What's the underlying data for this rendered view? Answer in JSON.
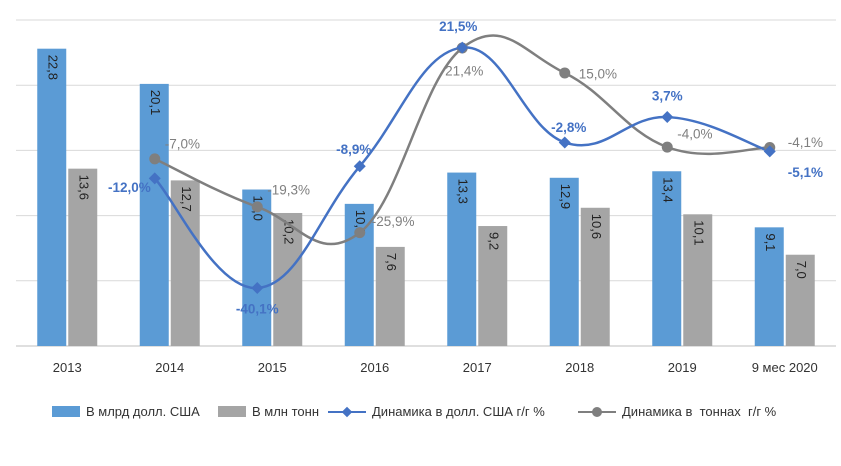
{
  "chart_data": {
    "type": "bar",
    "categories": [
      "2013",
      "2014",
      "2015",
      "2016",
      "2017",
      "2018",
      "2019",
      "9 мес 2020"
    ],
    "series": [
      {
        "name": "В млрд долл. США",
        "kind": "bar",
        "color": "#5b9bd5",
        "values": [
          22.8,
          20.1,
          12.0,
          10.9,
          13.3,
          12.9,
          13.4,
          9.1
        ],
        "labels": [
          "22,8",
          "20,1",
          "12,0",
          "10,9",
          "13,3",
          "12,9",
          "13,4",
          "9,1"
        ]
      },
      {
        "name": "В млн тонн",
        "kind": "bar",
        "color": "#a5a5a5",
        "values": [
          13.6,
          12.7,
          10.2,
          7.6,
          9.2,
          10.6,
          10.1,
          7.0
        ],
        "labels": [
          "13,6",
          "12,7",
          "10,2",
          "7,6",
          "9,2",
          "10,6",
          "10,1",
          "7,0"
        ]
      },
      {
        "name": "Динамика в долл. США г/г %",
        "kind": "line",
        "marker": "diamond",
        "color": "#4472c4",
        "values": [
          null,
          -12.0,
          -40.1,
          -8.9,
          21.5,
          -2.8,
          3.7,
          -5.1
        ],
        "labels": [
          "",
          "-12,0%",
          "-40,1%",
          "-8,9%",
          "21,5%",
          "-2,8%",
          "3,7%",
          "-5,1%"
        ]
      },
      {
        "name": "Динамика в  тоннах  г/г %",
        "kind": "line",
        "marker": "circle",
        "color": "#7f7f7f",
        "values": [
          null,
          -7.0,
          -19.3,
          -25.9,
          21.4,
          15.0,
          -4.0,
          -4.1
        ],
        "labels": [
          "",
          "-7,0%",
          "-19,3%",
          "-25,9%",
          "21,4%",
          "15,0%",
          "-4,0%",
          "-4,1%"
        ]
      }
    ],
    "bar_axis": {
      "min": 0,
      "max": 25,
      "gridlines": [
        5,
        10,
        15,
        20,
        25
      ]
    },
    "line_axis": {
      "min": -47,
      "max": 26
    },
    "legend_position": "bottom",
    "title": ""
  },
  "colors": {
    "bar_usd": "#5b9bd5",
    "bar_tons": "#a5a5a5",
    "line_usd": "#4472c4",
    "line_tons": "#7f7f7f",
    "grid": "#d9d9d9"
  }
}
